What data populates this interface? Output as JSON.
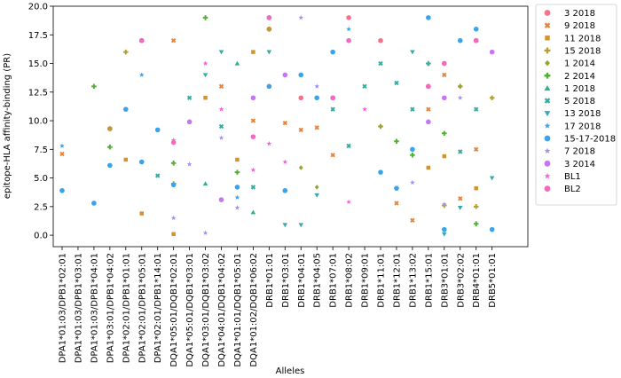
{
  "chart_data": {
    "type": "scatter",
    "title": "",
    "xlabel": "Alleles",
    "ylabel": "epitope-HLA affinity-binding (PR)",
    "ylim": [
      -1.0,
      20.0
    ],
    "yticks": [
      "0.0",
      "2.5",
      "5.0",
      "7.5",
      "10.0",
      "12.5",
      "15.0",
      "17.5",
      "20.0"
    ],
    "grid": false,
    "legend_position": "outside-right",
    "categories": [
      "DPA1*01:03/DPB1*02:01",
      "DPA1*01:03/DPB1*03:01",
      "DPA1*01:03/DPB1*04:01",
      "DPA1*03:01/DPB1*04:02",
      "DPA1*02:01/DPB1*01:01",
      "DPA1*02:01/DPB1*05:01",
      "DPA1*02:01/DPB1*14:01",
      "DQA1*05:01/DQB1*02:01",
      "DQA1*05:01/DQB1*03:01",
      "DQA1*03:01/DQB1*03:02",
      "DQA1*04:01/DQB1*04:02",
      "DQA1*01:01/DQB1*05:01",
      "DQA1*01:02/DQB1*06:02",
      "DRB1*01:01",
      "DRB1*03:01",
      "DRB1*04:01",
      "DRB1*04:05",
      "DRB1*07:01",
      "DRB1*08:02",
      "DRB1*09:01",
      "DRB1*11:01",
      "DRB1*12:01",
      "DRB1*13:02",
      "DRB1*15:01",
      "DRB3*01:01",
      "DRB3*02:02",
      "DRB4*01:01",
      "DRB5*01:01"
    ],
    "series": [
      {
        "name": "3 2018",
        "color": "#f77189",
        "marker": "circle",
        "points": [
          [
            5,
            17.0
          ],
          [
            15,
            12.0
          ],
          [
            18,
            19.0
          ],
          [
            20,
            17.0
          ],
          [
            23,
            13.0
          ],
          [
            24,
            15.0
          ],
          [
            26,
            17.0
          ]
        ]
      },
      {
        "name": "9 2018",
        "color": "#e7833b",
        "marker": "x",
        "points": [
          [
            0,
            7.1
          ],
          [
            3,
            9.3
          ],
          [
            7,
            17.0
          ],
          [
            10,
            13.0
          ],
          [
            12,
            10.0
          ],
          [
            13,
            18.0
          ],
          [
            14,
            9.8
          ],
          [
            15,
            9.2
          ],
          [
            16,
            9.4
          ],
          [
            17,
            7.0
          ],
          [
            21,
            2.8
          ],
          [
            22,
            1.3
          ],
          [
            23,
            11.0
          ],
          [
            24,
            14.0
          ],
          [
            25,
            3.2
          ],
          [
            26,
            7.5
          ]
        ]
      },
      {
        "name": "11 2018",
        "color": "#d0932f",
        "marker": "square",
        "points": [
          [
            4,
            6.6
          ],
          [
            5,
            1.9
          ],
          [
            7,
            0.1
          ],
          [
            9,
            12.0
          ],
          [
            11,
            6.6
          ],
          [
            12,
            16.0
          ],
          [
            23,
            5.9
          ],
          [
            24,
            6.9
          ],
          [
            26,
            4.1
          ]
        ]
      },
      {
        "name": "15 2018",
        "color": "#b39e31",
        "marker": "plus",
        "points": [
          [
            3,
            9.3
          ],
          [
            4,
            16.0
          ],
          [
            7,
            4.5
          ],
          [
            13,
            18.0
          ],
          [
            20,
            9.5
          ],
          [
            24,
            2.6
          ],
          [
            25,
            13.0
          ],
          [
            26,
            2.5
          ],
          [
            27,
            12.0
          ]
        ]
      },
      {
        "name": "1 2014",
        "color": "#96a432",
        "marker": "diamond",
        "points": [
          [
            15,
            5.9
          ],
          [
            16,
            4.2
          ],
          [
            20,
            9.5
          ],
          [
            25,
            13.0
          ]
        ]
      },
      {
        "name": "2 2014",
        "color": "#50b131",
        "marker": "plus",
        "points": [
          [
            2,
            13.0
          ],
          [
            3,
            7.7
          ],
          [
            7,
            6.3
          ],
          [
            9,
            19.0
          ],
          [
            11,
            5.5
          ],
          [
            21,
            8.2
          ],
          [
            22,
            7.0
          ],
          [
            23,
            15.0
          ],
          [
            24,
            8.9
          ],
          [
            26,
            1.0
          ]
        ]
      },
      {
        "name": "1 2018",
        "color": "#34ae8f",
        "marker": "triangle-up",
        "points": [
          [
            9,
            4.5
          ],
          [
            11,
            15.0
          ],
          [
            12,
            2.0
          ]
        ]
      },
      {
        "name": "5 2018",
        "color": "#36ab9d",
        "marker": "x",
        "points": [
          [
            6,
            5.2
          ],
          [
            8,
            12.0
          ],
          [
            10,
            9.5
          ],
          [
            12,
            4.2
          ],
          [
            17,
            11.0
          ],
          [
            18,
            7.8
          ],
          [
            19,
            13.0
          ],
          [
            20,
            15.0
          ],
          [
            21,
            13.3
          ],
          [
            22,
            11.0
          ],
          [
            25,
            7.3
          ],
          [
            26,
            11.0
          ]
        ]
      },
      {
        "name": "13 2018",
        "color": "#38aaac",
        "marker": "triangle-down",
        "points": [
          [
            9,
            14.0
          ],
          [
            10,
            16.0
          ],
          [
            13,
            16.0
          ],
          [
            14,
            0.9
          ],
          [
            15,
            0.9
          ],
          [
            16,
            3.5
          ],
          [
            22,
            16.0
          ],
          [
            24,
            0.1
          ],
          [
            25,
            2.4
          ],
          [
            27,
            5.0
          ]
        ]
      },
      {
        "name": "17 2018",
        "color": "#3ba3ec",
        "marker": "star",
        "points": [
          [
            0,
            7.8
          ],
          [
            5,
            14.0
          ],
          [
            11,
            3.3
          ],
          [
            13,
            13.0
          ],
          [
            18,
            18.0
          ],
          [
            22,
            7.5
          ],
          [
            23,
            15.0
          ],
          [
            26,
            18.0
          ]
        ]
      },
      {
        "name": "15-17-2018",
        "color": "#3ba3ec",
        "marker": "circle",
        "points": [
          [
            0,
            3.9
          ],
          [
            2,
            2.8
          ],
          [
            3,
            6.1
          ],
          [
            4,
            11.0
          ],
          [
            5,
            6.4
          ],
          [
            6,
            9.2
          ],
          [
            7,
            4.4
          ],
          [
            11,
            4.2
          ],
          [
            13,
            13.0
          ],
          [
            14,
            3.9
          ],
          [
            15,
            14.0
          ],
          [
            16,
            12.0
          ],
          [
            17,
            16.0
          ],
          [
            20,
            5.5
          ],
          [
            21,
            4.1
          ],
          [
            22,
            7.5
          ],
          [
            23,
            19.0
          ],
          [
            24,
            0.5
          ],
          [
            25,
            17.0
          ],
          [
            26,
            18.0
          ],
          [
            27,
            0.5
          ]
        ]
      },
      {
        "name": "7 2018",
        "color": "#a38ef5",
        "marker": "star",
        "points": [
          [
            7,
            1.5
          ],
          [
            8,
            6.2
          ],
          [
            9,
            0.2
          ],
          [
            10,
            8.5
          ],
          [
            11,
            2.4
          ],
          [
            14,
            14.0
          ],
          [
            15,
            19.0
          ],
          [
            16,
            13.0
          ],
          [
            22,
            4.6
          ],
          [
            24,
            2.7
          ],
          [
            25,
            12.0
          ]
        ]
      },
      {
        "name": "3 2014",
        "color": "#c774f5",
        "marker": "circle",
        "points": [
          [
            8,
            9.9
          ],
          [
            10,
            3.1
          ],
          [
            12,
            12.0
          ],
          [
            13,
            19.0
          ],
          [
            14,
            14.0
          ],
          [
            17,
            12.0
          ],
          [
            23,
            9.9
          ],
          [
            24,
            12.0
          ],
          [
            27,
            16.0
          ]
        ]
      },
      {
        "name": "BL1",
        "color": "#f45fdd",
        "marker": "star",
        "points": [
          [
            7,
            8.3
          ],
          [
            9,
            15.0
          ],
          [
            10,
            11.0
          ],
          [
            12,
            5.7
          ],
          [
            13,
            8.0
          ],
          [
            14,
            6.4
          ],
          [
            18,
            2.9
          ],
          [
            19,
            11.0
          ]
        ]
      },
      {
        "name": "BL2",
        "color": "#f567c2",
        "marker": "circle",
        "points": [
          [
            5,
            17.0
          ],
          [
            7,
            8.1
          ],
          [
            12,
            8.6
          ],
          [
            13,
            19.0
          ],
          [
            17,
            12.0
          ],
          [
            18,
            17.0
          ],
          [
            23,
            13.0
          ],
          [
            24,
            15.0
          ],
          [
            26,
            17.0
          ]
        ]
      }
    ]
  }
}
